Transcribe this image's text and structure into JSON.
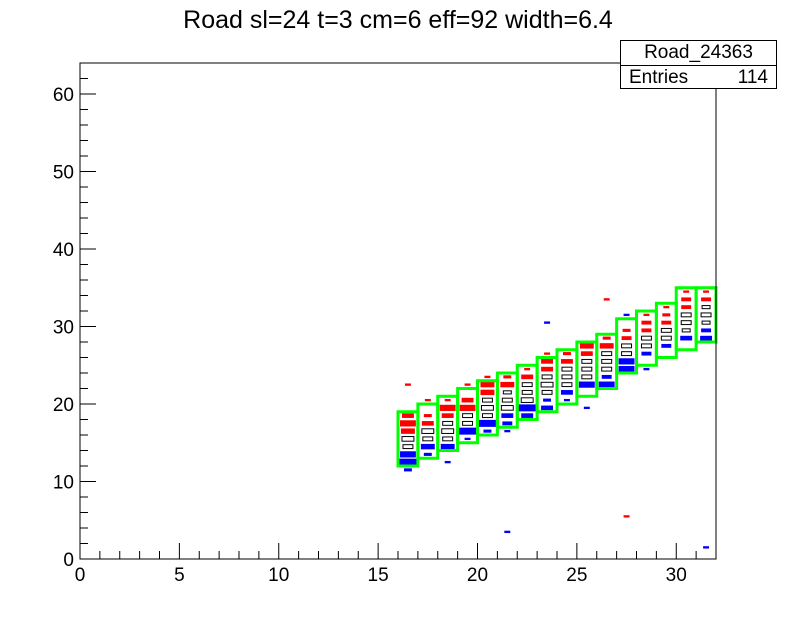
{
  "chart_data": {
    "type": "heatmap",
    "title": "Road sl=24 t=3 cm=6 eff=92 width=6.4",
    "xlabel": "",
    "ylabel": "",
    "xlim": [
      0,
      32
    ],
    "ylim": [
      0,
      64
    ],
    "x_ticks": [
      0,
      5,
      10,
      15,
      20,
      25,
      30
    ],
    "y_ticks": [
      0,
      10,
      20,
      30,
      40,
      50,
      60
    ],
    "stats": {
      "name": "Road_24363",
      "entries_label": "Entries",
      "entries": "114"
    },
    "road_boxes": [
      {
        "x": 16,
        "y0": 12,
        "y1": 19
      },
      {
        "x": 17,
        "y0": 13,
        "y1": 20
      },
      {
        "x": 18,
        "y0": 14,
        "y1": 21
      },
      {
        "x": 19,
        "y0": 15,
        "y1": 22
      },
      {
        "x": 20,
        "y0": 16,
        "y1": 23
      },
      {
        "x": 21,
        "y0": 17,
        "y1": 24
      },
      {
        "x": 22,
        "y0": 18,
        "y1": 25
      },
      {
        "x": 23,
        "y0": 19,
        "y1": 26
      },
      {
        "x": 24,
        "y0": 20,
        "y1": 27
      },
      {
        "x": 25,
        "y0": 21,
        "y1": 28
      },
      {
        "x": 26,
        "y0": 22,
        "y1": 29
      },
      {
        "x": 27,
        "y0": 24,
        "y1": 31
      },
      {
        "x": 28,
        "y0": 25,
        "y1": 32
      },
      {
        "x": 29,
        "y0": 26,
        "y1": 33
      },
      {
        "x": 30,
        "y0": 27,
        "y1": 35
      },
      {
        "x": 31,
        "y0": 28,
        "y1": 35
      }
    ],
    "cells": [
      {
        "x": 16,
        "y": 12,
        "c": "b",
        "s": 0.9
      },
      {
        "x": 16,
        "y": 13,
        "c": "b",
        "s": 0.8
      },
      {
        "x": 16,
        "y": 14,
        "c": "k",
        "s": 0.5
      },
      {
        "x": 16,
        "y": 15,
        "c": "k",
        "s": 0.6
      },
      {
        "x": 16,
        "y": 16,
        "c": "r",
        "s": 0.7
      },
      {
        "x": 16,
        "y": 17,
        "c": "r",
        "s": 0.8
      },
      {
        "x": 16,
        "y": 18,
        "c": "r",
        "s": 0.6
      },
      {
        "x": 16,
        "y": 22,
        "c": "r",
        "s": 0.3
      },
      {
        "x": 16,
        "y": 11,
        "c": "b",
        "s": 0.4
      },
      {
        "x": 17,
        "y": 13,
        "c": "b",
        "s": 0.4
      },
      {
        "x": 17,
        "y": 14,
        "c": "b",
        "s": 0.7
      },
      {
        "x": 17,
        "y": 15,
        "c": "k",
        "s": 0.5
      },
      {
        "x": 17,
        "y": 16,
        "c": "k",
        "s": 0.6
      },
      {
        "x": 17,
        "y": 17,
        "c": "r",
        "s": 0.6
      },
      {
        "x": 17,
        "y": 18,
        "c": "r",
        "s": 0.4
      },
      {
        "x": 17,
        "y": 20,
        "c": "r",
        "s": 0.3
      },
      {
        "x": 18,
        "y": 12,
        "c": "b",
        "s": 0.3
      },
      {
        "x": 18,
        "y": 14,
        "c": "b",
        "s": 0.7
      },
      {
        "x": 18,
        "y": 15,
        "c": "k",
        "s": 0.5
      },
      {
        "x": 18,
        "y": 16,
        "c": "k",
        "s": 0.6
      },
      {
        "x": 18,
        "y": 17,
        "c": "k",
        "s": 0.5
      },
      {
        "x": 18,
        "y": 18,
        "c": "r",
        "s": 0.6
      },
      {
        "x": 18,
        "y": 19,
        "c": "r",
        "s": 0.8
      },
      {
        "x": 18,
        "y": 20,
        "c": "r",
        "s": 0.3
      },
      {
        "x": 19,
        "y": 15,
        "c": "b",
        "s": 0.3
      },
      {
        "x": 19,
        "y": 16,
        "c": "b",
        "s": 0.9
      },
      {
        "x": 19,
        "y": 17,
        "c": "k",
        "s": 0.5
      },
      {
        "x": 19,
        "y": 18,
        "c": "k",
        "s": 0.5
      },
      {
        "x": 19,
        "y": 19,
        "c": "r",
        "s": 0.8
      },
      {
        "x": 19,
        "y": 20,
        "c": "r",
        "s": 0.6
      },
      {
        "x": 19,
        "y": 22,
        "c": "r",
        "s": 0.3
      },
      {
        "x": 20,
        "y": 17,
        "c": "b",
        "s": 0.9
      },
      {
        "x": 20,
        "y": 18,
        "c": "k",
        "s": 0.5
      },
      {
        "x": 20,
        "y": 19,
        "c": "k",
        "s": 0.6
      },
      {
        "x": 20,
        "y": 20,
        "c": "k",
        "s": 0.5
      },
      {
        "x": 20,
        "y": 21,
        "c": "r",
        "s": 0.7
      },
      {
        "x": 20,
        "y": 22,
        "c": "r",
        "s": 0.7
      },
      {
        "x": 20,
        "y": 16,
        "c": "b",
        "s": 0.4
      },
      {
        "x": 20,
        "y": 23,
        "c": "r",
        "s": 0.3
      },
      {
        "x": 21,
        "y": 16,
        "c": "b",
        "s": 0.3
      },
      {
        "x": 21,
        "y": 17,
        "c": "b",
        "s": 0.5
      },
      {
        "x": 21,
        "y": 18,
        "c": "b",
        "s": 0.6
      },
      {
        "x": 21,
        "y": 19,
        "c": "k",
        "s": 0.6
      },
      {
        "x": 21,
        "y": 20,
        "c": "k",
        "s": 0.5
      },
      {
        "x": 21,
        "y": 21,
        "c": "k",
        "s": 0.4
      },
      {
        "x": 21,
        "y": 22,
        "c": "r",
        "s": 0.7
      },
      {
        "x": 21,
        "y": 23,
        "c": "r",
        "s": 0.4
      },
      {
        "x": 21,
        "y": 3,
        "c": "b",
        "s": 0.3
      },
      {
        "x": 22,
        "y": 18,
        "c": "b",
        "s": 0.6
      },
      {
        "x": 22,
        "y": 19,
        "c": "b",
        "s": 0.9
      },
      {
        "x": 22,
        "y": 20,
        "c": "k",
        "s": 0.6
      },
      {
        "x": 22,
        "y": 21,
        "c": "k",
        "s": 0.5
      },
      {
        "x": 22,
        "y": 22,
        "c": "k",
        "s": 0.5
      },
      {
        "x": 22,
        "y": 23,
        "c": "r",
        "s": 0.6
      },
      {
        "x": 22,
        "y": 24,
        "c": "r",
        "s": 0.3
      },
      {
        "x": 23,
        "y": 19,
        "c": "b",
        "s": 0.6
      },
      {
        "x": 23,
        "y": 20,
        "c": "b",
        "s": 0.4
      },
      {
        "x": 23,
        "y": 21,
        "c": "k",
        "s": 0.5
      },
      {
        "x": 23,
        "y": 22,
        "c": "k",
        "s": 0.6
      },
      {
        "x": 23,
        "y": 23,
        "c": "k",
        "s": 0.5
      },
      {
        "x": 23,
        "y": 24,
        "c": "r",
        "s": 0.6
      },
      {
        "x": 23,
        "y": 25,
        "c": "r",
        "s": 0.6
      },
      {
        "x": 23,
        "y": 26,
        "c": "r",
        "s": 0.3
      },
      {
        "x": 23,
        "y": 30,
        "c": "b",
        "s": 0.3
      },
      {
        "x": 24,
        "y": 20,
        "c": "b",
        "s": 0.3
      },
      {
        "x": 24,
        "y": 21,
        "c": "b",
        "s": 0.6
      },
      {
        "x": 24,
        "y": 22,
        "c": "k",
        "s": 0.5
      },
      {
        "x": 24,
        "y": 23,
        "c": "k",
        "s": 0.5
      },
      {
        "x": 24,
        "y": 24,
        "c": "k",
        "s": 0.5
      },
      {
        "x": 24,
        "y": 25,
        "c": "r",
        "s": 0.6
      },
      {
        "x": 24,
        "y": 26,
        "c": "r",
        "s": 0.4
      },
      {
        "x": 25,
        "y": 19,
        "c": "b",
        "s": 0.3
      },
      {
        "x": 25,
        "y": 22,
        "c": "b",
        "s": 0.8
      },
      {
        "x": 25,
        "y": 23,
        "c": "k",
        "s": 0.5
      },
      {
        "x": 25,
        "y": 24,
        "c": "k",
        "s": 0.5
      },
      {
        "x": 25,
        "y": 25,
        "c": "k",
        "s": 0.5
      },
      {
        "x": 25,
        "y": 26,
        "c": "r",
        "s": 0.6
      },
      {
        "x": 25,
        "y": 27,
        "c": "r",
        "s": 0.7
      },
      {
        "x": 26,
        "y": 22,
        "c": "b",
        "s": 0.8
      },
      {
        "x": 26,
        "y": 23,
        "c": "b",
        "s": 0.5
      },
      {
        "x": 26,
        "y": 24,
        "c": "k",
        "s": 0.5
      },
      {
        "x": 26,
        "y": 25,
        "c": "k",
        "s": 0.5
      },
      {
        "x": 26,
        "y": 26,
        "c": "k",
        "s": 0.5
      },
      {
        "x": 26,
        "y": 27,
        "c": "r",
        "s": 0.7
      },
      {
        "x": 26,
        "y": 28,
        "c": "r",
        "s": 0.4
      },
      {
        "x": 26,
        "y": 33,
        "c": "r",
        "s": 0.3
      },
      {
        "x": 27,
        "y": 5,
        "c": "r",
        "s": 0.3
      },
      {
        "x": 27,
        "y": 24,
        "c": "b",
        "s": 0.8
      },
      {
        "x": 27,
        "y": 25,
        "c": "b",
        "s": 0.8
      },
      {
        "x": 27,
        "y": 26,
        "c": "k",
        "s": 0.5
      },
      {
        "x": 27,
        "y": 27,
        "c": "k",
        "s": 0.5
      },
      {
        "x": 27,
        "y": 28,
        "c": "r",
        "s": 0.5
      },
      {
        "x": 27,
        "y": 29,
        "c": "r",
        "s": 0.4
      },
      {
        "x": 27,
        "y": 31,
        "c": "b",
        "s": 0.3
      },
      {
        "x": 28,
        "y": 24,
        "c": "b",
        "s": 0.3
      },
      {
        "x": 28,
        "y": 26,
        "c": "b",
        "s": 0.5
      },
      {
        "x": 28,
        "y": 27,
        "c": "k",
        "s": 0.5
      },
      {
        "x": 28,
        "y": 28,
        "c": "k",
        "s": 0.5
      },
      {
        "x": 28,
        "y": 29,
        "c": "r",
        "s": 0.5
      },
      {
        "x": 28,
        "y": 30,
        "c": "r",
        "s": 0.5
      },
      {
        "x": 28,
        "y": 31,
        "c": "r",
        "s": 0.3
      },
      {
        "x": 29,
        "y": 27,
        "c": "b",
        "s": 0.5
      },
      {
        "x": 29,
        "y": 28,
        "c": "k",
        "s": 0.5
      },
      {
        "x": 29,
        "y": 29,
        "c": "k",
        "s": 0.5
      },
      {
        "x": 29,
        "y": 30,
        "c": "r",
        "s": 0.5
      },
      {
        "x": 29,
        "y": 31,
        "c": "r",
        "s": 0.4
      },
      {
        "x": 29,
        "y": 32,
        "c": "r",
        "s": 0.3
      },
      {
        "x": 30,
        "y": 28,
        "c": "b",
        "s": 0.6
      },
      {
        "x": 30,
        "y": 29,
        "c": "k",
        "s": 0.4
      },
      {
        "x": 30,
        "y": 30,
        "c": "k",
        "s": 0.5
      },
      {
        "x": 30,
        "y": 31,
        "c": "k",
        "s": 0.5
      },
      {
        "x": 30,
        "y": 32,
        "c": "r",
        "s": 0.5
      },
      {
        "x": 30,
        "y": 33,
        "c": "r",
        "s": 0.5
      },
      {
        "x": 30,
        "y": 34,
        "c": "r",
        "s": 0.3
      },
      {
        "x": 31,
        "y": 1,
        "c": "b",
        "s": 0.3
      },
      {
        "x": 31,
        "y": 28,
        "c": "b",
        "s": 0.6
      },
      {
        "x": 31,
        "y": 29,
        "c": "b",
        "s": 0.5
      },
      {
        "x": 31,
        "y": 30,
        "c": "k",
        "s": 0.4
      },
      {
        "x": 31,
        "y": 31,
        "c": "k",
        "s": 0.5
      },
      {
        "x": 31,
        "y": 32,
        "c": "k",
        "s": 0.4
      },
      {
        "x": 31,
        "y": 33,
        "c": "r",
        "s": 0.5
      },
      {
        "x": 31,
        "y": 34,
        "c": "r",
        "s": 0.3
      }
    ],
    "colors": {
      "b": "#0000ff",
      "r": "#ff0000",
      "k": "#000000",
      "road": "#00ff00"
    },
    "grid": false,
    "legend_position": "top-right"
  }
}
